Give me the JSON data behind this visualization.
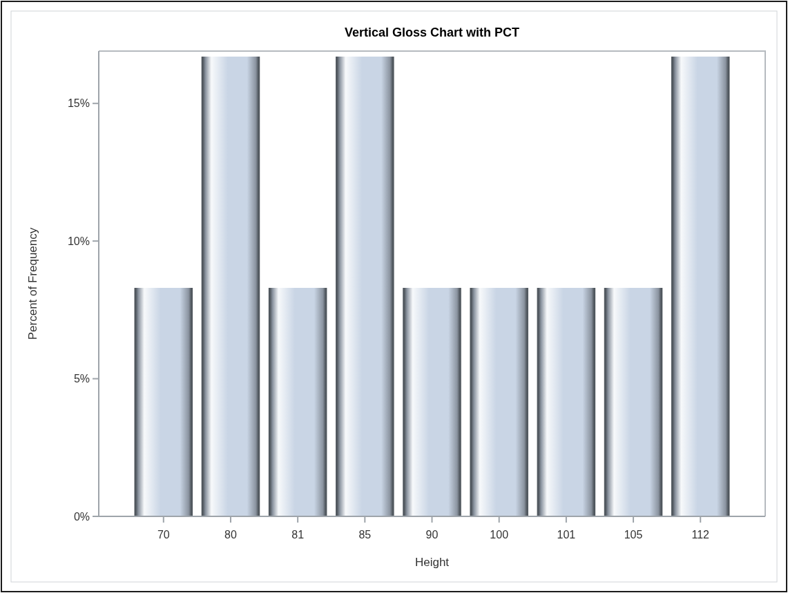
{
  "chart_data": {
    "type": "bar",
    "title": "Vertical Gloss Chart with PCT",
    "xlabel": "Height",
    "ylabel": "Percent of Frequency",
    "categories": [
      "70",
      "80",
      "81",
      "85",
      "90",
      "100",
      "101",
      "105",
      "112"
    ],
    "values": [
      8.3,
      16.7,
      8.3,
      16.7,
      8.3,
      8.3,
      8.3,
      8.3,
      16.7
    ],
    "color": "#c9d5e5",
    "ylim": [
      0,
      16.9
    ],
    "yticks": [
      {
        "value": 0,
        "label": "0%"
      },
      {
        "value": 5,
        "label": "5%"
      },
      {
        "value": 10,
        "label": "10%"
      },
      {
        "value": 15,
        "label": "15%"
      }
    ]
  }
}
